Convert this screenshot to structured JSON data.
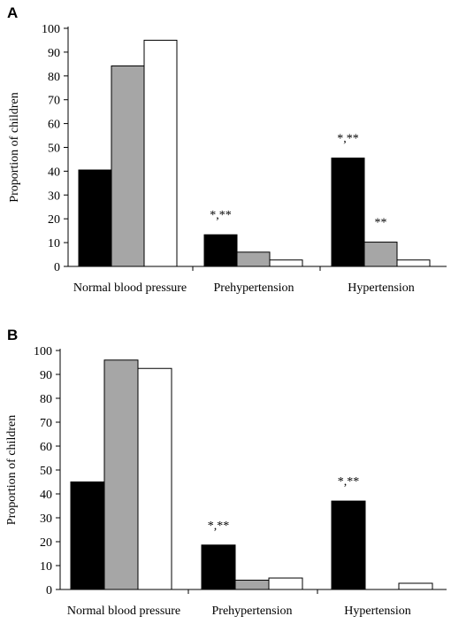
{
  "colors": {
    "black": "#000000",
    "gray": "#a6a6a6",
    "white": "#ffffff"
  },
  "chart_data": [
    {
      "panel": "A",
      "type": "bar",
      "categories": [
        "Normal blood pressure",
        "Prehypertension",
        "Hypertension"
      ],
      "series": [
        {
          "values": [
            40.5,
            13.3,
            45.5
          ],
          "color": "#000000"
        },
        {
          "values": [
            84.2,
            6.0,
            10.2
          ],
          "color": "#a6a6a6"
        },
        {
          "values": [
            95.0,
            2.7,
            2.7
          ],
          "color": "#ffffff"
        }
      ],
      "annotations": [
        {
          "category": "Prehypertension",
          "series_index": 0,
          "text": "*,**"
        },
        {
          "category": "Hypertension",
          "series_index": 0,
          "text": "*,**"
        },
        {
          "category": "Hypertension",
          "series_index": 1,
          "text": "**"
        }
      ],
      "ylabel": "Proportion of children",
      "ylim": [
        0,
        100
      ],
      "yticks": [
        0,
        10,
        20,
        30,
        40,
        50,
        60,
        70,
        80,
        90,
        100
      ],
      "grid": false
    },
    {
      "panel": "B",
      "type": "bar",
      "categories": [
        "Normal blood pressure",
        "Prehypertension",
        "Hypertension"
      ],
      "series": [
        {
          "values": [
            45.0,
            18.6,
            37.0
          ],
          "color": "#000000"
        },
        {
          "values": [
            96.0,
            3.9,
            0
          ],
          "color": "#a6a6a6"
        },
        {
          "values": [
            92.5,
            4.8,
            2.6
          ],
          "color": "#ffffff"
        }
      ],
      "annotations": [
        {
          "category": "Prehypertension",
          "series_index": 0,
          "text": "*,**"
        },
        {
          "category": "Hypertension",
          "series_index": 0,
          "text": "*,**"
        }
      ],
      "ylabel": "Proportion of children",
      "ylim": [
        0,
        100
      ],
      "yticks": [
        0,
        10,
        20,
        30,
        40,
        50,
        60,
        70,
        80,
        90,
        100
      ],
      "grid": false
    }
  ]
}
